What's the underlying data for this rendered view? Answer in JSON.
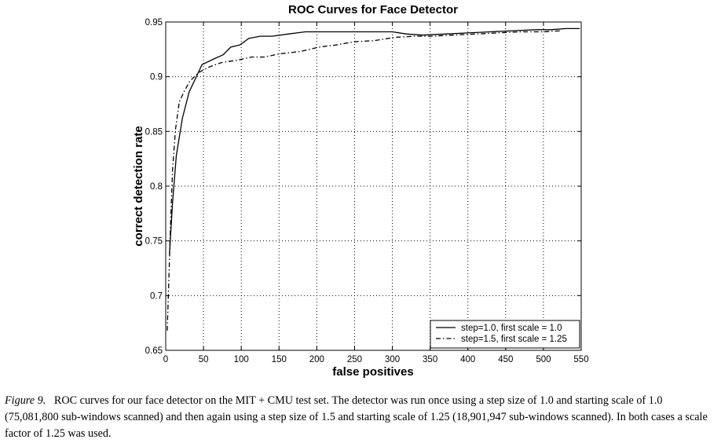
{
  "chart_data": {
    "type": "line",
    "title": "ROC Curves for Face Detector",
    "xlabel": "false positives",
    "ylabel": "correct detection rate",
    "xlim": [
      0,
      550
    ],
    "ylim": [
      0.65,
      0.95
    ],
    "xticks": [
      0,
      50,
      100,
      150,
      200,
      250,
      300,
      350,
      400,
      450,
      500,
      550
    ],
    "yticks": [
      0.65,
      0.7,
      0.75,
      0.8,
      0.85,
      0.9,
      0.95
    ],
    "xtick_labels": [
      "0",
      "50",
      "100",
      "150",
      "200",
      "250",
      "300",
      "350",
      "400",
      "450",
      "500",
      "550"
    ],
    "ytick_labels": [
      "0.65",
      "0.7",
      "0.75",
      "0.8",
      "0.85",
      "0.9",
      "0.95"
    ],
    "grid": true,
    "legend_position": "bottom-right",
    "series": [
      {
        "name": "step=1.0, first scale = 1.0",
        "style": "solid",
        "x": [
          5,
          9,
          14,
          22,
          31,
          48,
          66,
          76,
          86,
          98,
          110,
          125,
          141,
          162,
          185,
          205,
          229,
          252,
          278,
          300,
          319,
          340,
          370,
          400,
          430,
          460,
          490,
          510,
          530,
          548
        ],
        "y": [
          0.738,
          0.785,
          0.828,
          0.862,
          0.886,
          0.911,
          0.917,
          0.92,
          0.927,
          0.929,
          0.935,
          0.937,
          0.937,
          0.939,
          0.941,
          0.941,
          0.941,
          0.941,
          0.941,
          0.941,
          0.939,
          0.938,
          0.939,
          0.94,
          0.941,
          0.942,
          0.943,
          0.943,
          0.944,
          0.944
        ]
      },
      {
        "name": "step=1.5, first scale = 1.25",
        "style": "dashdot",
        "x": [
          2,
          4,
          6,
          9,
          13,
          18,
          24,
          32,
          44,
          58,
          74,
          94,
          114,
          130,
          152,
          178,
          203,
          225,
          250,
          276,
          304,
          330,
          352,
          380,
          410,
          440,
          470,
          500,
          524
        ],
        "y": [
          0.668,
          0.71,
          0.758,
          0.815,
          0.852,
          0.877,
          0.886,
          0.896,
          0.904,
          0.909,
          0.913,
          0.915,
          0.918,
          0.918,
          0.921,
          0.923,
          0.927,
          0.929,
          0.932,
          0.933,
          0.936,
          0.937,
          0.937,
          0.938,
          0.939,
          0.94,
          0.941,
          0.941,
          0.942
        ]
      }
    ]
  },
  "caption": {
    "label": "Figure 9.",
    "text": "ROC curves for our face detector on the MIT + CMU test set. The detector was run once using a step size of 1.0 and starting scale of 1.0 (75,081,800 sub-windows scanned) and then again using a step size of 1.5 and starting scale of 1.25 (18,901,947 sub-windows scanned). In both cases a scale factor of 1.25 was used."
  }
}
